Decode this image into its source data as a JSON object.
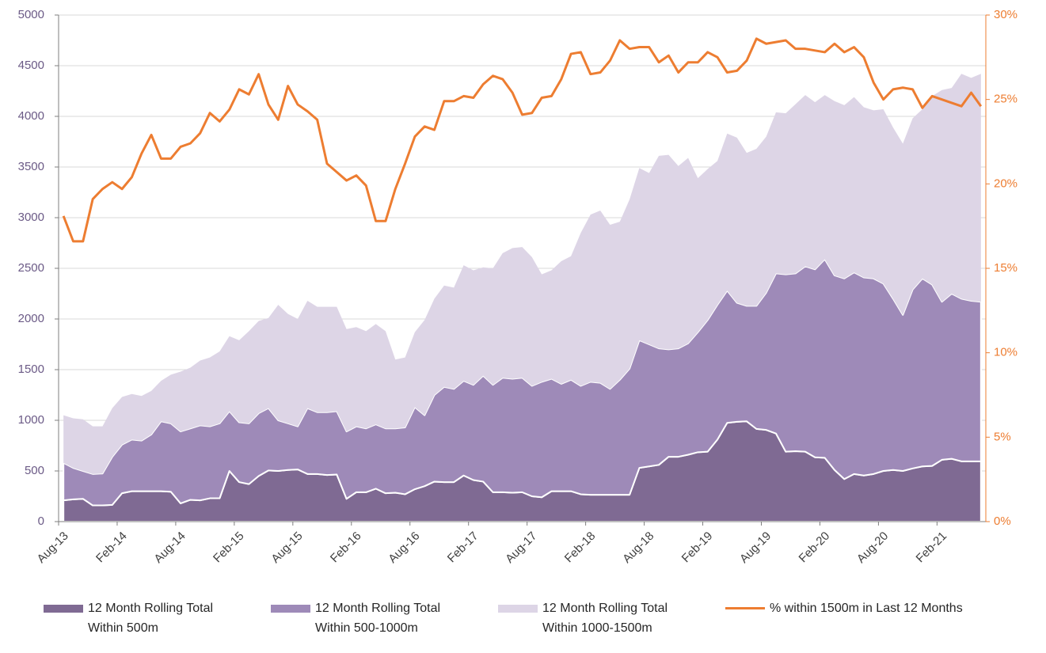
{
  "chart_data": {
    "type": "area",
    "categories": [
      "Aug-13",
      null,
      null,
      null,
      null,
      null,
      "Feb-14",
      null,
      null,
      null,
      null,
      null,
      "Aug-14",
      null,
      null,
      null,
      null,
      null,
      "Feb-15",
      null,
      null,
      null,
      null,
      null,
      "Aug-15",
      null,
      null,
      null,
      null,
      null,
      "Feb-16",
      null,
      null,
      null,
      null,
      null,
      "Aug-16",
      null,
      null,
      null,
      null,
      null,
      "Feb-17",
      null,
      null,
      null,
      null,
      null,
      "Aug-17",
      null,
      null,
      null,
      null,
      null,
      "Feb-18",
      null,
      null,
      null,
      null,
      null,
      "Aug-18",
      null,
      null,
      null,
      null,
      null,
      "Feb-19",
      null,
      null,
      null,
      null,
      null,
      "Aug-19",
      null,
      null,
      null,
      null,
      null,
      "Feb-20",
      null,
      null,
      null,
      null,
      null,
      "Aug-20",
      null,
      null,
      null,
      null,
      null,
      "Feb-21",
      null,
      null,
      null,
      null
    ],
    "series": [
      {
        "name": "12 Month Rolling Total Within 500m",
        "color": "#7f6a93",
        "values": [
          210,
          220,
          225,
          160,
          160,
          165,
          280,
          300,
          300,
          300,
          300,
          295,
          180,
          215,
          210,
          230,
          230,
          500,
          390,
          370,
          450,
          505,
          500,
          510,
          515,
          470,
          470,
          460,
          465,
          225,
          290,
          290,
          325,
          280,
          285,
          270,
          320,
          350,
          395,
          390,
          390,
          455,
          410,
          395,
          290,
          290,
          285,
          290,
          250,
          240,
          300,
          300,
          300,
          270,
          265,
          265,
          265,
          265,
          265,
          530,
          545,
          560,
          640,
          640,
          660,
          685,
          690,
          810,
          975,
          985,
          990,
          915,
          905,
          870,
          690,
          695,
          690,
          635,
          630,
          510,
          420,
          470,
          455,
          470,
          500,
          510,
          500,
          525,
          545,
          550,
          610,
          620,
          595,
          595,
          595
        ]
      },
      {
        "name": "12 Month Rolling Total Within 500-1000m",
        "color": "#9e8ab8",
        "values": [
          370,
          310,
          275,
          310,
          315,
          475,
          480,
          510,
          500,
          560,
          690,
          675,
          710,
          705,
          740,
          710,
          740,
          590,
          590,
          600,
          620,
          615,
          500,
          460,
          425,
          650,
          610,
          620,
          625,
          665,
          650,
          630,
          635,
          640,
          635,
          660,
          810,
          700,
          855,
          940,
          920,
          935,
          940,
          1045,
          1060,
          1130,
          1125,
          1130,
          1090,
          1140,
          1110,
          1060,
          1100,
          1070,
          1115,
          1105,
          1045,
          1135,
          1245,
          1260,
          1205,
          1150,
          1060,
          1070,
          1100,
          1185,
          1300,
          1330,
          1305,
          1175,
          1140,
          1215,
          1355,
          1580,
          1750,
          1755,
          1830,
          1855,
          1960,
          1920,
          1980,
          1990,
          1955,
          1930,
          1850,
          1690,
          1540,
          1765,
          1855,
          1790,
          1560,
          1630,
          1605,
          1585,
          1575
        ]
      },
      {
        "name": "12 Month Rolling Total Within 1000-1500m",
        "color": "#ddd5e6",
        "values": [
          470,
          490,
          510,
          470,
          465,
          480,
          470,
          450,
          440,
          430,
          400,
          480,
          590,
          600,
          640,
          680,
          710,
          740,
          810,
          910,
          910,
          890,
          1140,
          1080,
          1060,
          1060,
          1040,
          1040,
          1030,
          1010,
          980,
          960,
          990,
          960,
          680,
          690,
          740,
          940,
          950,
          1000,
          1000,
          1140,
          1130,
          1070,
          1150,
          1230,
          1290,
          1290,
          1270,
          1060,
          1070,
          1210,
          1220,
          1510,
          1650,
          1700,
          1620,
          1560,
          1670,
          1700,
          1690,
          1900,
          1920,
          1800,
          1830,
          1520,
          1490,
          1420,
          1550,
          1630,
          1510,
          1550,
          1540,
          1590,
          1590,
          1670,
          1690,
          1650,
          1620,
          1720,
          1710,
          1730,
          1680,
          1660,
          1720,
          1690,
          1690,
          1690,
          1670,
          1860,
          2090,
          2030,
          2220,
          2200,
          2250
        ]
      },
      {
        "name": "% within 1500m in Last 12 Months",
        "color": "#ed7d31",
        "type": "line",
        "axis": "y2",
        "values": [
          18.1,
          16.6,
          16.6,
          19.1,
          19.7,
          20.1,
          19.7,
          20.4,
          21.8,
          22.9,
          21.5,
          21.5,
          22.2,
          22.4,
          23.0,
          24.2,
          23.7,
          24.4,
          25.6,
          25.3,
          26.5,
          24.7,
          23.8,
          25.8,
          24.7,
          24.3,
          23.8,
          21.2,
          20.7,
          20.2,
          20.5,
          19.9,
          17.8,
          17.8,
          19.7,
          21.2,
          22.8,
          23.4,
          23.2,
          24.9,
          24.9,
          25.2,
          25.1,
          25.9,
          26.4,
          26.2,
          25.4,
          24.1,
          24.2,
          25.1,
          25.2,
          26.2,
          27.7,
          27.8,
          26.5,
          26.6,
          27.3,
          28.5,
          28.0,
          28.1,
          28.1,
          27.2,
          27.6,
          26.6,
          27.2,
          27.2,
          27.8,
          27.5,
          26.6,
          26.7,
          27.3,
          28.6,
          28.3,
          28.4,
          28.5,
          28.0,
          28.0,
          27.9,
          27.8,
          28.3,
          27.8,
          28.1,
          27.5,
          26.0,
          25.0,
          25.6,
          25.7,
          25.6,
          24.5,
          25.2,
          25.0,
          24.8,
          24.6,
          25.4,
          24.6
        ]
      }
    ],
    "ylim": [
      0,
      5000
    ],
    "yticks": [
      0,
      500,
      1000,
      1500,
      2000,
      2500,
      3000,
      3500,
      4000,
      4500,
      5000
    ],
    "y2lim": [
      0,
      30
    ],
    "y2ticks": [
      {
        "value": 0,
        "label": "0%"
      },
      {
        "value": 5,
        "label": "5%"
      },
      {
        "value": 10,
        "label": "10%"
      },
      {
        "value": 15,
        "label": "15%"
      },
      {
        "value": 20,
        "label": "20%"
      },
      {
        "value": 25,
        "label": "25%"
      },
      {
        "value": 30,
        "label": "30%"
      }
    ],
    "grid": true,
    "legend": "bottom"
  }
}
